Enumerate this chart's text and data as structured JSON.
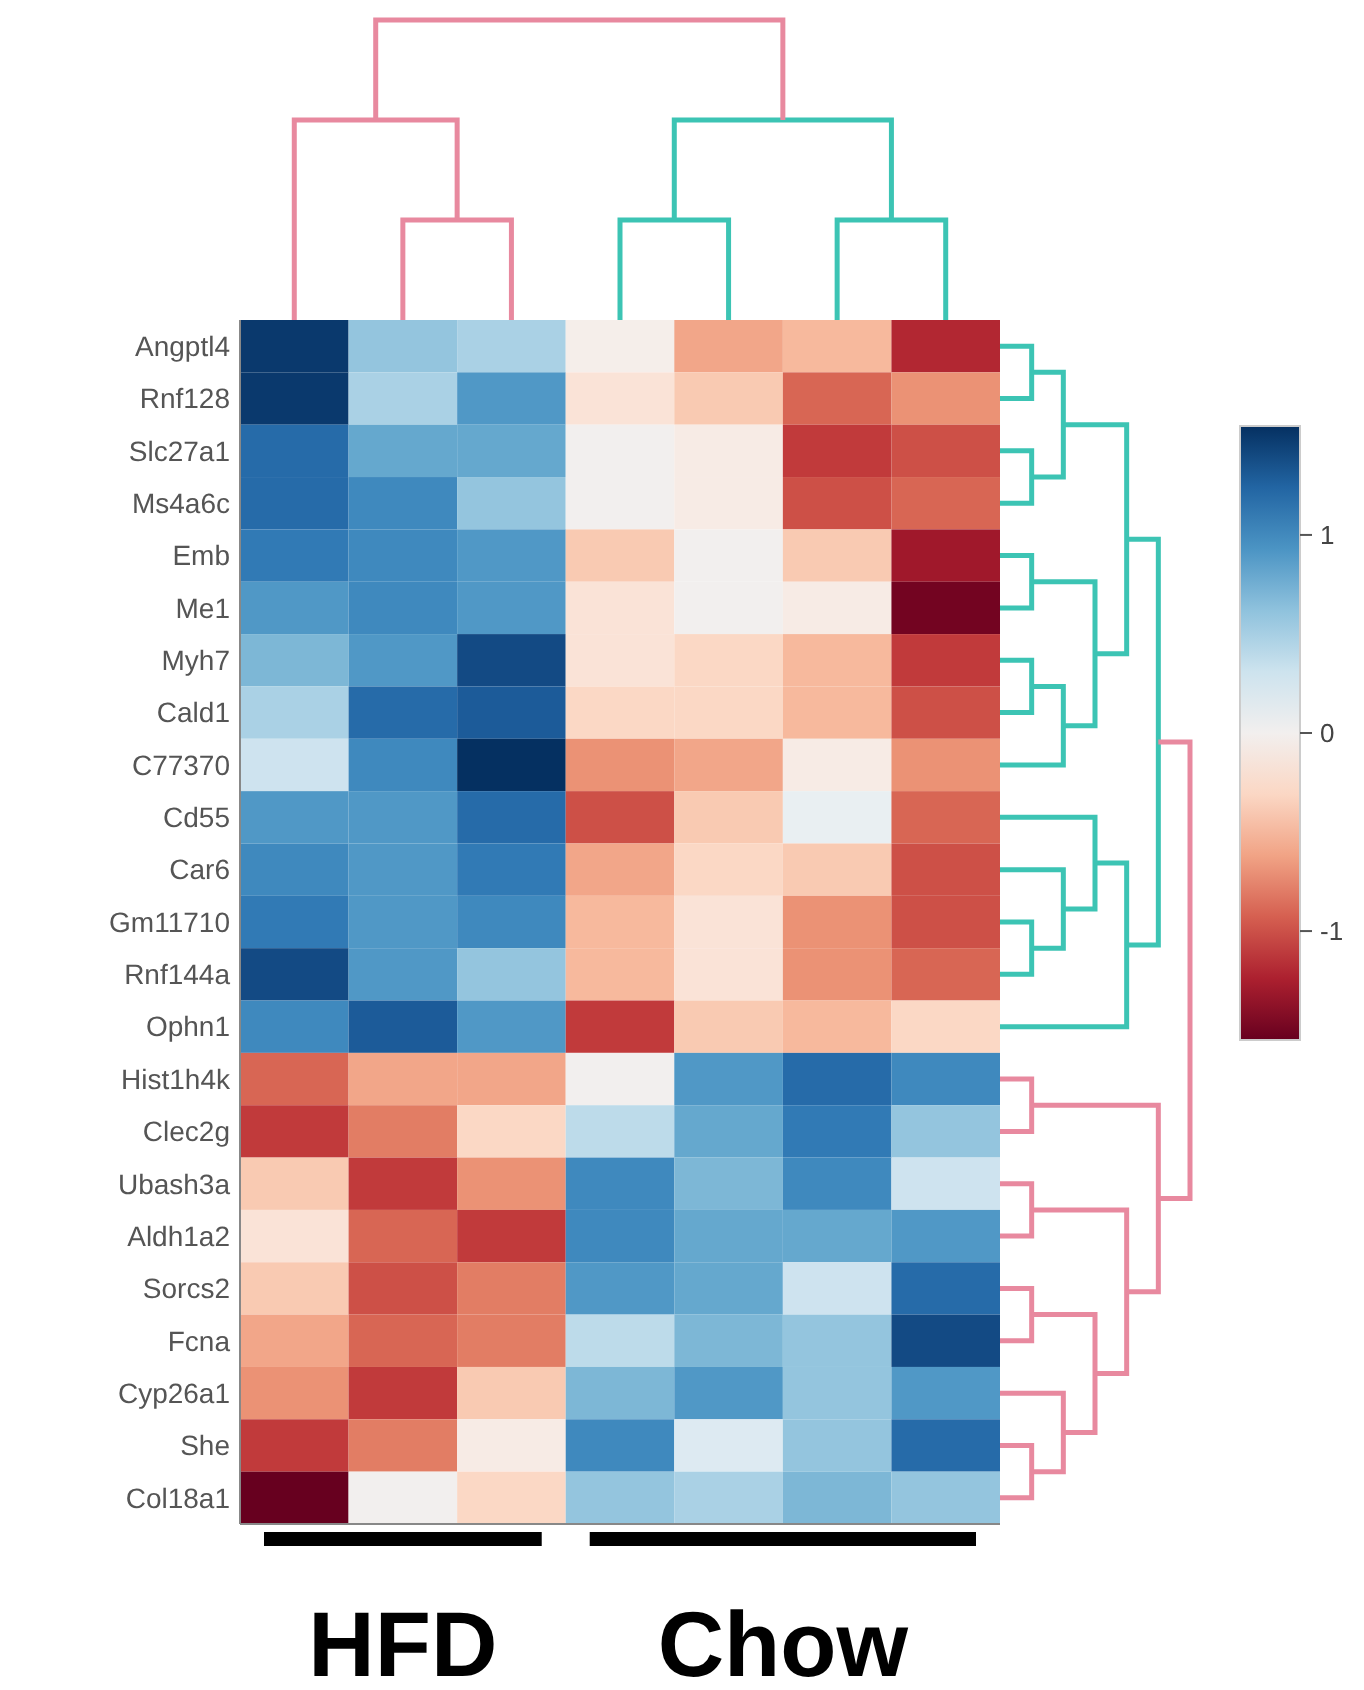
{
  "chart_data": {
    "type": "heatmap",
    "categories": [
      null,
      null,
      null,
      null,
      null,
      null,
      null
    ],
    "y_categories": [
      "Angptl4",
      "Rnf128",
      "Slc27a1",
      "Ms4a6c",
      "Emb",
      "Me1",
      "Myh7",
      "Cald1",
      "C77370",
      "Cd55",
      "Car6",
      "Gm11710",
      "Rnf144a",
      "Ophn1",
      "Hist1h4k",
      "Clec2g",
      "Ubash3a",
      "Aldh1a2",
      "Sorcs2",
      "Fcna",
      "Cyp26a1",
      "She",
      "Col18a1"
    ],
    "cells": [
      [
        1.5,
        0.6,
        0.5,
        -0.05,
        -0.6,
        -0.5,
        -1.2
      ],
      [
        1.5,
        0.5,
        0.9,
        -0.2,
        -0.4,
        -0.9,
        -0.7
      ],
      [
        1.2,
        0.8,
        0.8,
        0,
        -0.1,
        -1.1,
        -1.0
      ],
      [
        1.2,
        1.0,
        0.6,
        0,
        -0.1,
        -1.0,
        -0.9
      ],
      [
        1.1,
        1.0,
        0.9,
        -0.4,
        0,
        -0.4,
        -1.3
      ],
      [
        0.9,
        1.0,
        0.9,
        -0.2,
        0,
        -0.1,
        -1.5
      ],
      [
        0.7,
        0.9,
        1.4,
        -0.2,
        -0.3,
        -0.5,
        -1.1
      ],
      [
        0.5,
        1.2,
        1.3,
        -0.3,
        -0.3,
        -0.5,
        -1.0
      ],
      [
        0.3,
        1.0,
        1.55,
        -0.7,
        -0.6,
        -0.1,
        -0.7
      ],
      [
        0.9,
        0.9,
        1.2,
        -1.0,
        -0.4,
        0.1,
        -0.9
      ],
      [
        1.0,
        0.9,
        1.1,
        -0.6,
        -0.3,
        -0.4,
        -1.0
      ],
      [
        1.1,
        0.9,
        1.0,
        -0.5,
        -0.2,
        -0.7,
        -1.0
      ],
      [
        1.4,
        0.9,
        0.6,
        -0.5,
        -0.2,
        -0.7,
        -0.9
      ],
      [
        1.0,
        1.3,
        0.9,
        -1.1,
        -0.4,
        -0.5,
        -0.3
      ],
      [
        -0.9,
        -0.6,
        -0.6,
        0,
        0.9,
        1.2,
        1.0
      ],
      [
        -1.1,
        -0.8,
        -0.3,
        0.4,
        0.8,
        1.1,
        0.6
      ],
      [
        -0.4,
        -1.1,
        -0.7,
        1.0,
        0.7,
        1.0,
        0.3
      ],
      [
        -0.2,
        -0.9,
        -1.1,
        1.0,
        0.8,
        0.8,
        0.9
      ],
      [
        -0.4,
        -1.0,
        -0.8,
        0.9,
        0.8,
        0.3,
        1.2
      ],
      [
        -0.6,
        -0.9,
        -0.8,
        0.4,
        0.7,
        0.6,
        1.4
      ],
      [
        -0.7,
        -1.1,
        -0.4,
        0.7,
        0.9,
        0.6,
        0.9
      ],
      [
        -1.1,
        -0.8,
        -0.1,
        1.0,
        0.2,
        0.6,
        1.2
      ],
      [
        -1.55,
        0,
        -0.3,
        0.6,
        0.5,
        0.7,
        0.6
      ]
    ],
    "clim": [
      -1.55,
      1.55
    ],
    "cticks": [
      1,
      0,
      -1
    ],
    "annotations": [
      "HFD",
      "Chow"
    ]
  }
}
